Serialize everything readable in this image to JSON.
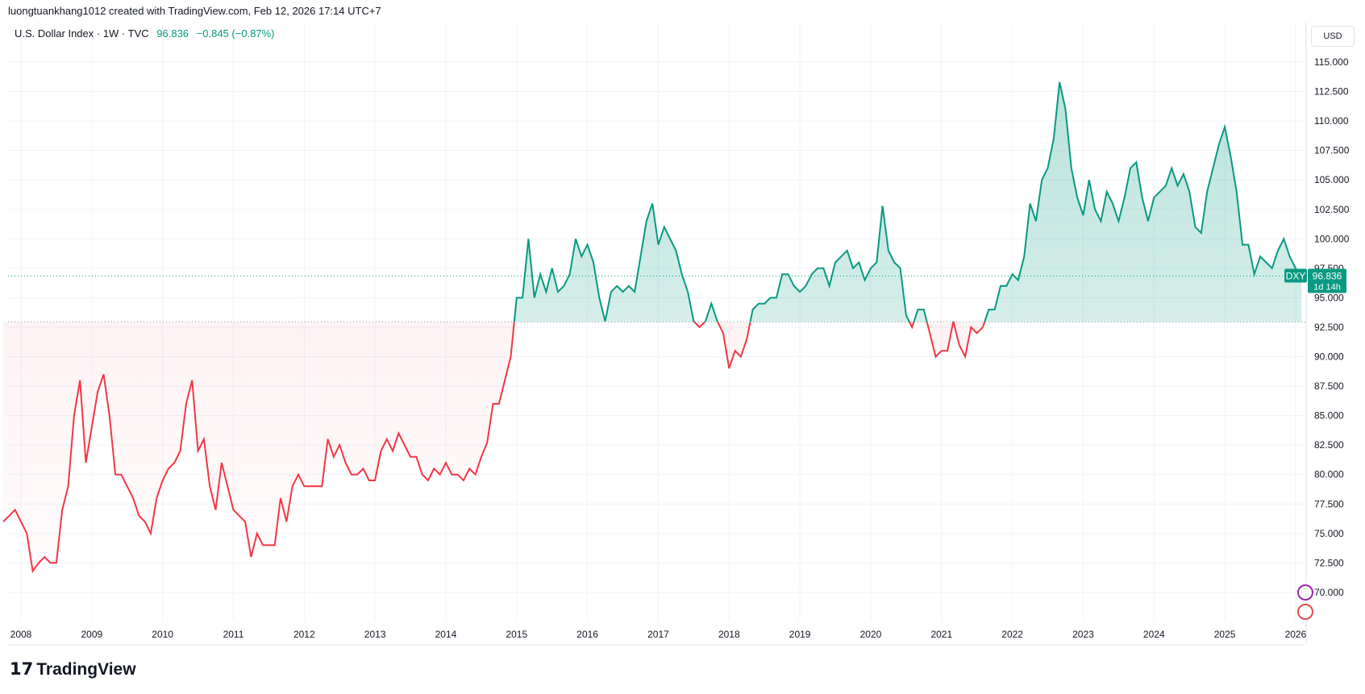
{
  "credit": "luongtuankhang1012 created with TradingView.com, Feb 12, 2026 17:14 UTC+7",
  "legend": {
    "symbol": "U.S. Dollar Index · 1W · TVC",
    "price": "96.836",
    "change": "−0.845 (−0.87%)"
  },
  "currency": "USD",
  "brand": "TradingView",
  "price_tag": {
    "ticker": "DXY",
    "price": "96.836",
    "countdown": "1d 14h"
  },
  "colors": {
    "up": "#089981",
    "down": "#F23645"
  },
  "chart_data": {
    "type": "area",
    "style": "baseline",
    "baseline": 92.94,
    "ylim": [
      67.5,
      116.5
    ],
    "yticks": [
      "70.000",
      "72.500",
      "75.000",
      "77.500",
      "80.000",
      "82.500",
      "85.000",
      "87.500",
      "90.000",
      "92.500",
      "95.000",
      "97.500",
      "100.000",
      "102.500",
      "105.000",
      "107.500",
      "110.000",
      "112.500",
      "115.000"
    ],
    "xticks": [
      "2008",
      "2009",
      "2010",
      "2011",
      "2012",
      "2013",
      "2014",
      "2015",
      "2016",
      "2017",
      "2018",
      "2019",
      "2020",
      "2021",
      "2022",
      "2023",
      "2024",
      "2025",
      "2026"
    ],
    "grid": true,
    "start": "2007-10",
    "frequency": "monthly",
    "values": [
      76,
      76.5,
      77,
      76,
      75,
      71.8,
      72.5,
      73,
      72.5,
      72.5,
      77,
      79,
      85,
      88,
      81,
      84,
      87,
      88.5,
      85,
      80,
      80,
      79,
      78,
      76.5,
      76,
      75,
      78,
      79.5,
      80.5,
      81,
      82,
      86,
      88,
      82,
      83,
      79,
      77,
      81,
      79,
      77,
      76.5,
      76,
      73,
      75,
      74,
      74,
      74,
      78,
      76,
      79,
      80,
      79,
      79,
      79,
      79,
      83,
      81.5,
      82.5,
      81,
      80,
      80,
      80.5,
      79.5,
      79.5,
      82,
      83,
      82,
      83.5,
      82.5,
      81.5,
      81.5,
      80,
      79.5,
      80.5,
      80,
      81,
      80,
      80,
      79.5,
      80.5,
      80,
      81.5,
      82.7,
      86,
      86,
      88,
      90,
      95,
      95,
      100,
      95,
      97,
      95.5,
      97.5,
      95.5,
      96,
      97,
      100,
      98.5,
      99.5,
      98,
      95,
      93,
      95.5,
      96,
      95.5,
      96,
      95.5,
      98.5,
      101.5,
      103,
      99.5,
      101,
      100,
      99,
      97,
      95.5,
      93,
      92.5,
      93,
      94.5,
      93,
      92,
      89,
      90.5,
      90,
      91.5,
      94,
      94.5,
      94.5,
      95,
      95,
      97,
      97,
      96,
      95.5,
      96,
      97,
      97.5,
      97.5,
      96,
      98,
      98.5,
      99,
      97.5,
      98,
      96.5,
      97.5,
      98,
      102.8,
      99,
      98,
      97.5,
      93.5,
      92.5,
      94,
      94,
      92,
      90,
      90.5,
      90.5,
      93,
      91,
      90,
      92.5,
      92,
      92.5,
      94,
      94,
      96,
      96,
      97,
      96.5,
      98.5,
      103,
      101.5,
      105,
      106,
      108.5,
      113.3,
      111,
      106,
      103.5,
      102,
      105,
      102.5,
      101.5,
      104,
      103,
      101.5,
      103.5,
      106,
      106.5,
      103.5,
      101.5,
      103.5,
      104,
      104.5,
      106,
      104.5,
      105.5,
      104,
      101,
      100.5,
      104,
      106,
      108,
      109.5,
      107,
      104,
      99.5,
      99.5,
      97,
      98.5,
      98,
      97.5,
      99,
      100,
      98.5,
      97.5,
      96.836
    ]
  }
}
